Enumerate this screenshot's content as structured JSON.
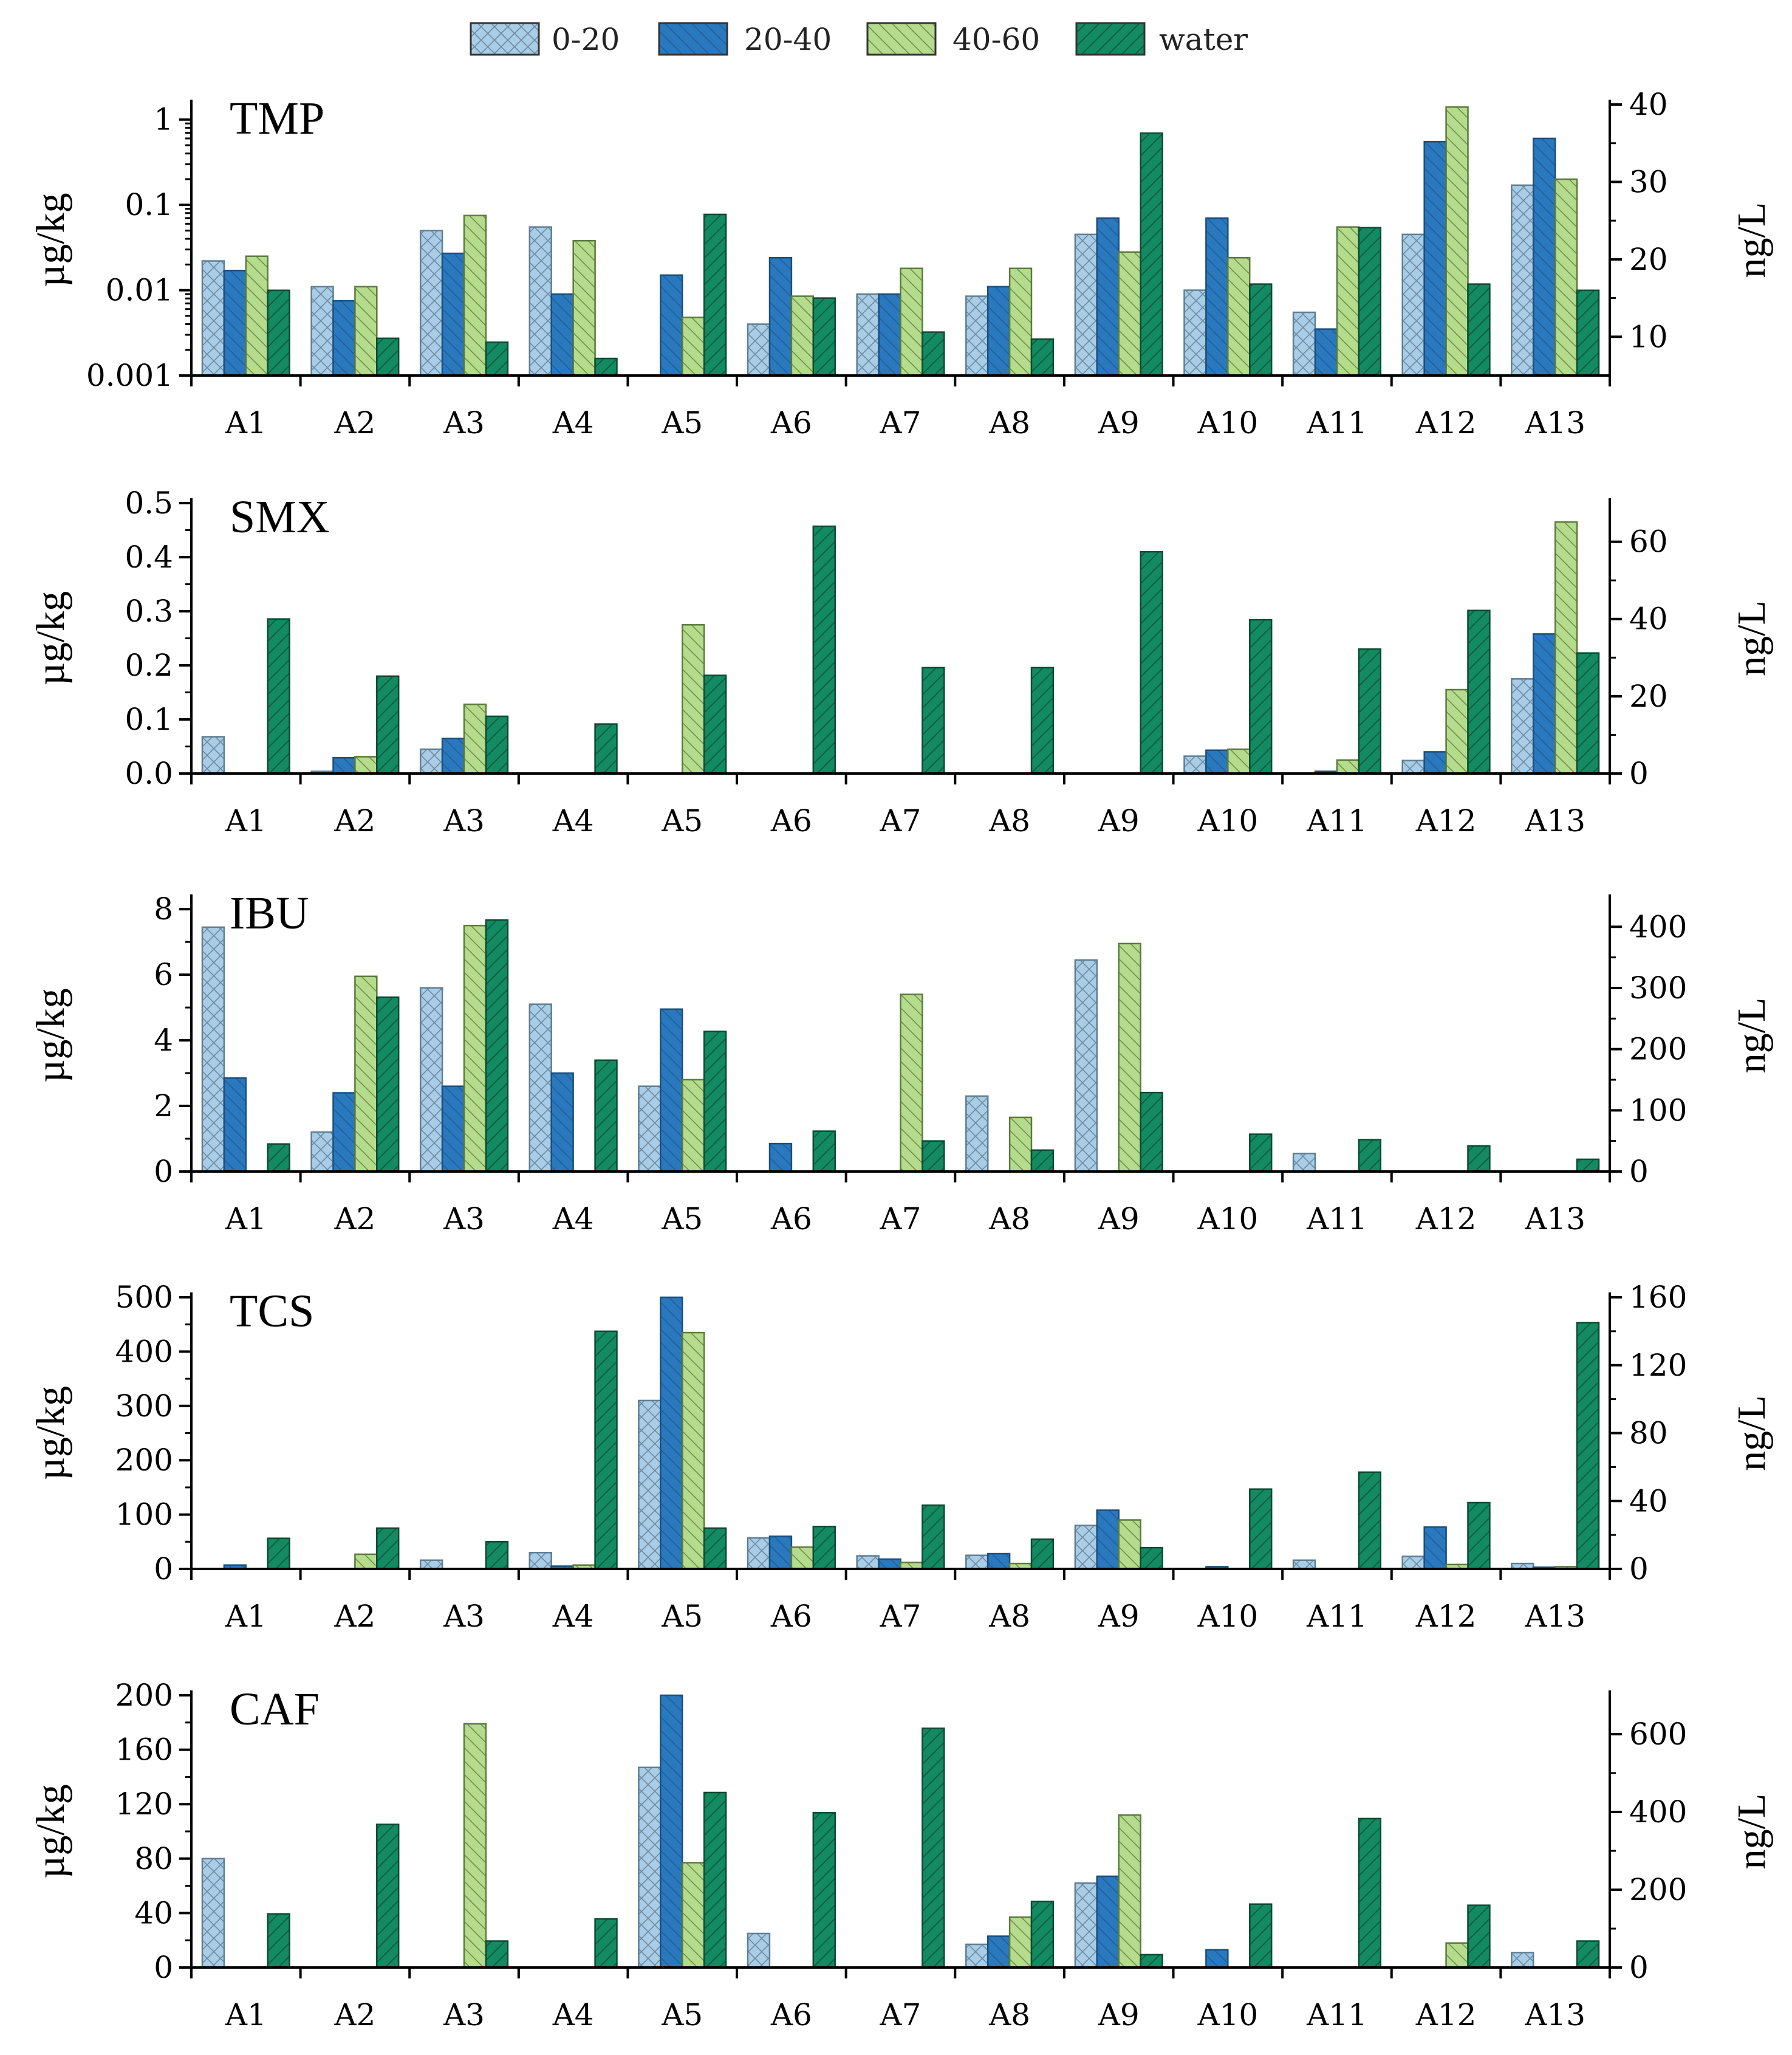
{
  "colors": {
    "s0_fill": "#a9cde6",
    "s0_stroke": "#5f7e94",
    "s1_fill": "#2a78bd",
    "s1_stroke": "#1a4e7e",
    "s2_fill": "#b5db8c",
    "s2_stroke": "#5c7a3c",
    "s3_fill": "#138a61",
    "s3_stroke": "#0b4a33"
  },
  "legend": {
    "items": [
      {
        "label": "0-20",
        "pattern": "cross"
      },
      {
        "label": "20-40",
        "pattern": "diag-back"
      },
      {
        "label": "40-60",
        "pattern": "diag-back"
      },
      {
        "label": "water",
        "pattern": "diag-fwd"
      }
    ]
  },
  "chart_data": [
    {
      "type": "bar",
      "title": "TMP",
      "ylabel": "µg/kg",
      "y2label": "ng/L",
      "yscale": "log",
      "ylim": [
        0.001,
        1.5
      ],
      "yticks": [
        0.001,
        0.01,
        0.1,
        1
      ],
      "ytick_labels": [
        "0.001",
        "0.01",
        "0.1",
        "1"
      ],
      "y2lim": [
        5,
        40
      ],
      "y2ticks": [
        10,
        20,
        30,
        40
      ],
      "categories": [
        "A1",
        "A2",
        "A3",
        "A4",
        "A5",
        "A6",
        "A7",
        "A8",
        "A9",
        "A10",
        "A11",
        "A12",
        "A13"
      ],
      "series": [
        {
          "name": "0-20",
          "axis": "left",
          "values": [
            0.022,
            0.011,
            0.05,
            0.055,
            null,
            0.004,
            0.009,
            0.0085,
            0.045,
            0.01,
            0.0055,
            0.045,
            0.17
          ]
        },
        {
          "name": "20-40",
          "axis": "left",
          "values": [
            0.017,
            0.0075,
            0.027,
            0.009,
            0.015,
            0.024,
            0.009,
            0.011,
            0.07,
            0.07,
            0.0035,
            0.55,
            0.6
          ]
        },
        {
          "name": "40-60",
          "axis": "left",
          "values": [
            0.025,
            0.011,
            0.075,
            0.038,
            0.0048,
            0.0085,
            0.018,
            0.018,
            0.028,
            0.024,
            0.055,
            1.4,
            0.2
          ]
        },
        {
          "name": "water",
          "axis": "right",
          "values": [
            16,
            9.8,
            9.3,
            7.2,
            25.8,
            15,
            10.6,
            9.7,
            36.3,
            16.8,
            24.1,
            16.8,
            16
          ]
        }
      ]
    },
    {
      "type": "bar",
      "title": "SMX",
      "ylabel": "µg/kg",
      "y2label": "ng/L",
      "yscale": "linear",
      "ylim": [
        0,
        0.5
      ],
      "yticks": [
        0,
        0.1,
        0.2,
        0.3,
        0.4,
        0.5
      ],
      "ytick_labels": [
        "0.0",
        "0.1",
        "0.2",
        "0.3",
        "0.4",
        "0.5"
      ],
      "y2lim": [
        0,
        70
      ],
      "y2ticks": [
        0,
        20,
        40,
        60
      ],
      "categories": [
        "A1",
        "A2",
        "A3",
        "A4",
        "A5",
        "A6",
        "A7",
        "A8",
        "A9",
        "A10",
        "A11",
        "A12",
        "A13"
      ],
      "series": [
        {
          "name": "0-20",
          "axis": "left",
          "values": [
            0.068,
            0.004,
            0.045,
            null,
            null,
            null,
            null,
            null,
            null,
            0.032,
            null,
            0.024,
            0.175
          ]
        },
        {
          "name": "20-40",
          "axis": "left",
          "values": [
            null,
            0.029,
            0.065,
            null,
            null,
            null,
            null,
            null,
            null,
            0.043,
            0.004,
            0.04,
            0.258
          ]
        },
        {
          "name": "40-60",
          "axis": "left",
          "values": [
            null,
            0.031,
            0.128,
            null,
            0.275,
            null,
            null,
            null,
            null,
            0.045,
            0.025,
            0.155,
            0.465
          ]
        },
        {
          "name": "water",
          "axis": "right",
          "values": [
            40,
            25.2,
            14.8,
            12.8,
            25.4,
            64,
            27.4,
            27.4,
            57.4,
            39.8,
            32.2,
            42.2,
            31.2
          ]
        }
      ]
    },
    {
      "type": "bar",
      "title": "IBU",
      "ylabel": "µg/kg",
      "y2label": "ng/L",
      "yscale": "linear",
      "ylim": [
        0,
        8.3
      ],
      "yticks": [
        0,
        2,
        4,
        6,
        8
      ],
      "ytick_labels": [
        "0",
        "2",
        "4",
        "6",
        "8"
      ],
      "y2lim": [
        0,
        445
      ],
      "y2ticks": [
        0,
        100,
        200,
        300,
        400
      ],
      "categories": [
        "A1",
        "A2",
        "A3",
        "A4",
        "A5",
        "A6",
        "A7",
        "A8",
        "A9",
        "A10",
        "A11",
        "A12",
        "A13"
      ],
      "series": [
        {
          "name": "0-20",
          "axis": "left",
          "values": [
            7.45,
            1.2,
            5.6,
            5.1,
            2.6,
            null,
            null,
            2.3,
            6.45,
            null,
            0.55,
            null,
            null
          ]
        },
        {
          "name": "20-40",
          "axis": "left",
          "values": [
            2.85,
            2.4,
            2.6,
            3.0,
            4.95,
            0.85,
            null,
            null,
            null,
            null,
            null,
            null,
            null
          ]
        },
        {
          "name": "40-60",
          "axis": "left",
          "values": [
            null,
            5.95,
            7.5,
            null,
            2.8,
            null,
            5.4,
            1.65,
            6.95,
            null,
            null,
            null,
            null
          ]
        },
        {
          "name": "water",
          "axis": "right",
          "values": [
            45,
            285,
            411,
            182,
            229,
            66,
            50,
            35,
            129,
            61,
            52,
            42,
            20
          ]
        }
      ]
    },
    {
      "type": "bar",
      "title": "TCS",
      "ylabel": "µg/kg",
      "y2label": "ng/L",
      "yscale": "linear",
      "ylim": [
        0,
        500
      ],
      "yticks": [
        0,
        100,
        200,
        300,
        400,
        500
      ],
      "ytick_labels": [
        "0",
        "100",
        "200",
        "300",
        "400",
        "500"
      ],
      "y2lim": [
        0,
        160
      ],
      "y2ticks": [
        0,
        40,
        80,
        120,
        160
      ],
      "categories": [
        "A1",
        "A2",
        "A3",
        "A4",
        "A5",
        "A6",
        "A7",
        "A8",
        "A9",
        "A10",
        "A11",
        "A12",
        "A13"
      ],
      "series": [
        {
          "name": "0-20",
          "axis": "left",
          "values": [
            null,
            null,
            16,
            30,
            310,
            57,
            24,
            25,
            80,
            null,
            16,
            23,
            10
          ]
        },
        {
          "name": "20-40",
          "axis": "left",
          "values": [
            7,
            null,
            null,
            5,
            500,
            60,
            18,
            28,
            108,
            4,
            null,
            77,
            3
          ]
        },
        {
          "name": "40-60",
          "axis": "left",
          "values": [
            null,
            27,
            null,
            7,
            435,
            40,
            12,
            10,
            90,
            null,
            null,
            8,
            4
          ]
        },
        {
          "name": "water",
          "axis": "right",
          "values": [
            18,
            24,
            16,
            140,
            24,
            25,
            37.5,
            17.5,
            12.5,
            47,
            57,
            39,
            145
          ]
        }
      ]
    },
    {
      "type": "bar",
      "title": "CAF",
      "ylabel": "µg/kg",
      "y2label": "ng/L",
      "yscale": "linear",
      "ylim": [
        0,
        200
      ],
      "yticks": [
        0,
        40,
        80,
        120,
        160,
        200
      ],
      "ytick_labels": [
        "0",
        "40",
        "80",
        "120",
        "160",
        "200"
      ],
      "y2lim": [
        0,
        700
      ],
      "y2ticks": [
        0,
        200,
        400,
        600
      ],
      "categories": [
        "A1",
        "A2",
        "A3",
        "A4",
        "A5",
        "A6",
        "A7",
        "A8",
        "A9",
        "A10",
        "A11",
        "A12",
        "A13"
      ],
      "series": [
        {
          "name": "0-20",
          "axis": "left",
          "values": [
            80,
            null,
            null,
            null,
            147,
            25,
            null,
            17,
            62,
            null,
            null,
            null,
            11
          ]
        },
        {
          "name": "20-40",
          "axis": "left",
          "values": [
            null,
            null,
            null,
            null,
            200,
            null,
            null,
            23,
            67,
            13,
            null,
            null,
            null
          ]
        },
        {
          "name": "40-60",
          "axis": "left",
          "values": [
            null,
            null,
            179,
            null,
            77,
            null,
            null,
            37,
            112,
            null,
            null,
            18,
            null
          ]
        },
        {
          "name": "water",
          "axis": "right",
          "values": [
            138,
            368,
            68,
            125,
            450,
            398,
            615,
            170,
            33,
            163,
            383,
            160,
            68
          ]
        }
      ]
    }
  ]
}
